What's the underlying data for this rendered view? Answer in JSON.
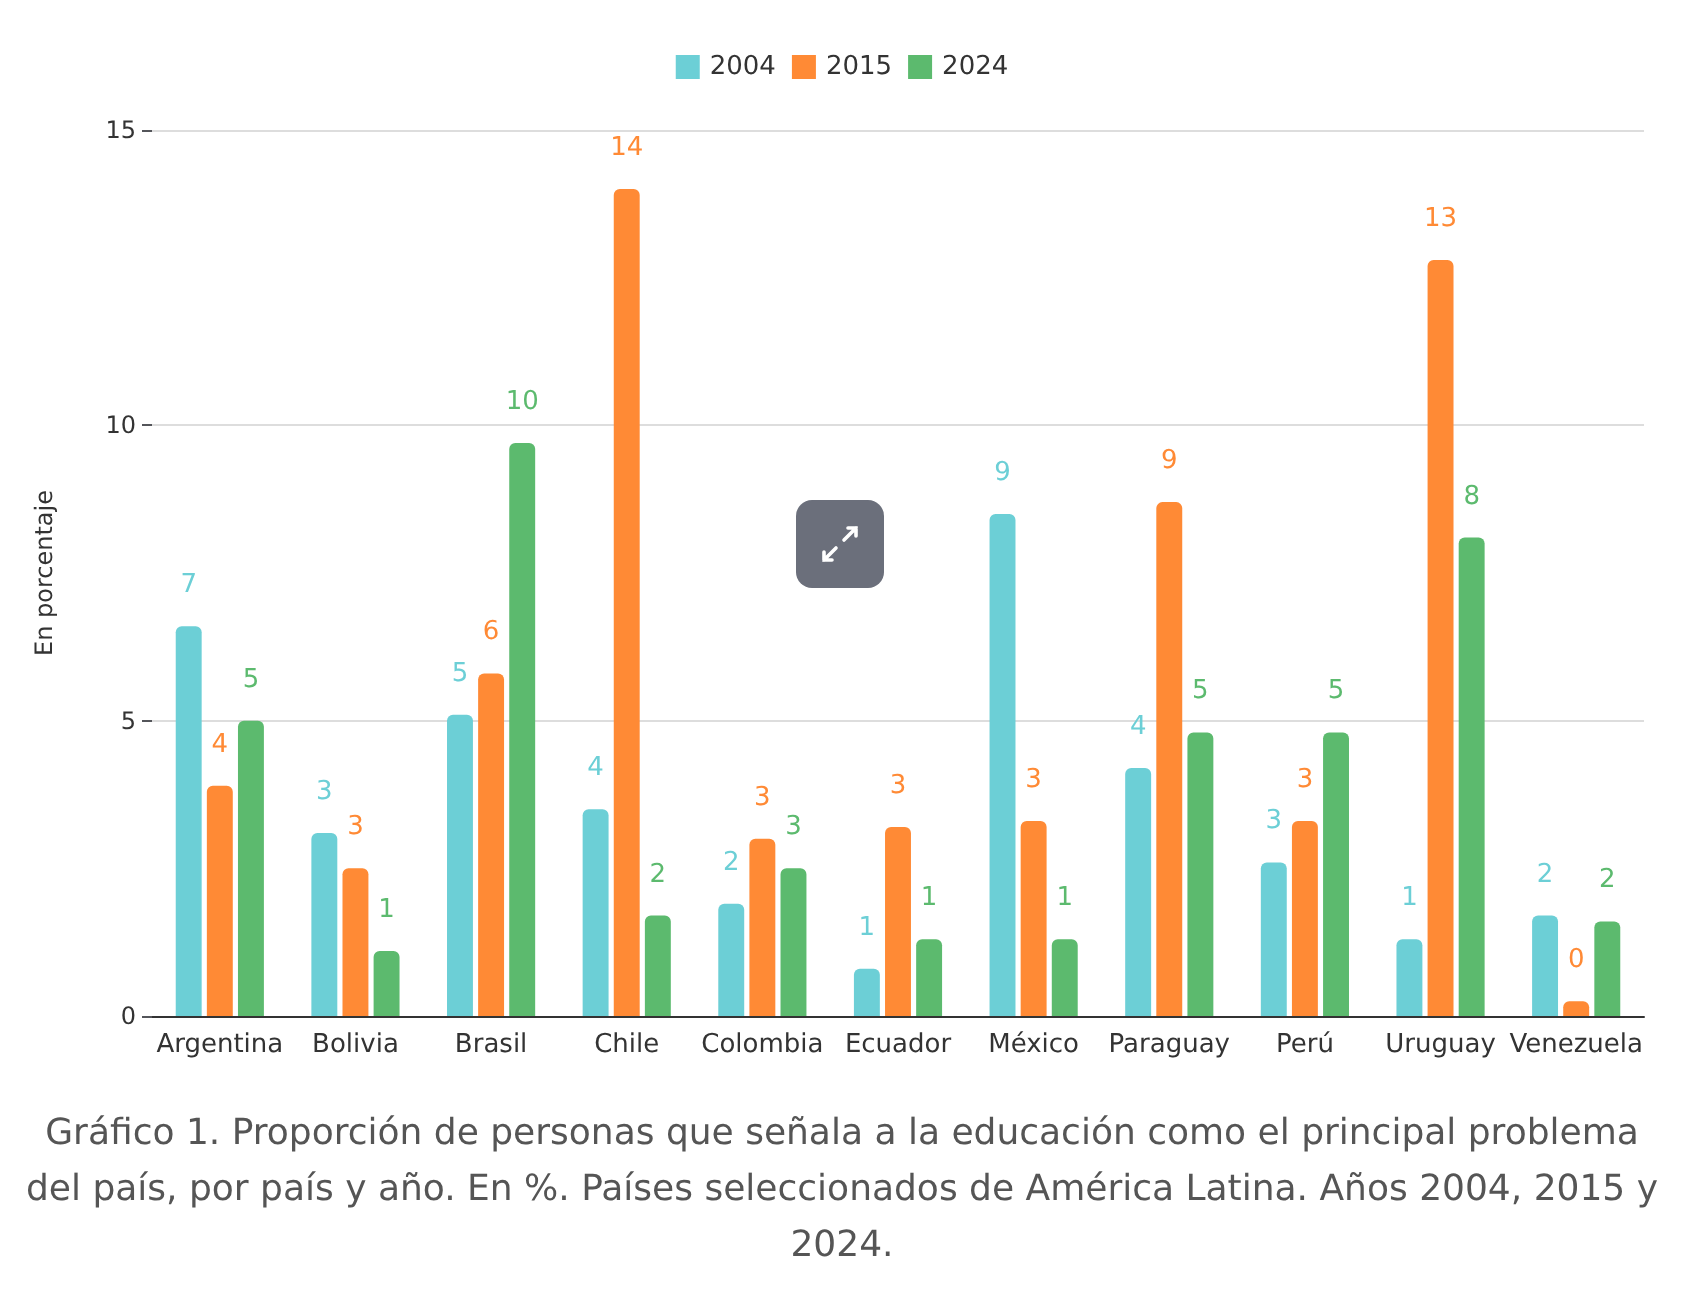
{
  "chart_data": {
    "type": "bar",
    "ylabel": "En porcentaje",
    "categories": [
      "Argentina",
      "Bolivia",
      "Brasil",
      "Chile",
      "Colombia",
      "Ecuador",
      "México",
      "Paraguay",
      "Perú",
      "Uruguay",
      "Venezuela"
    ],
    "series": [
      {
        "name": "2004",
        "color": "#6ccfd6",
        "values": [
          6.6,
          3.1,
          5.1,
          3.5,
          1.9,
          0.8,
          8.5,
          4.2,
          2.6,
          1.3,
          1.7
        ],
        "value_labels": [
          "7",
          "3",
          "5",
          "4",
          "2",
          "1",
          "9",
          "4",
          "3",
          "1",
          "2"
        ]
      },
      {
        "name": "2015",
        "color": "#ff8a35",
        "values": [
          3.9,
          2.5,
          5.8,
          14.0,
          3.0,
          3.2,
          3.3,
          8.7,
          3.3,
          12.8,
          0.25
        ],
        "value_labels": [
          "4",
          "3",
          "6",
          "14",
          "3",
          "3",
          "3",
          "9",
          "3",
          "13",
          "0"
        ]
      },
      {
        "name": "2024",
        "color": "#5cba6e",
        "values": [
          5.0,
          1.1,
          9.7,
          1.7,
          2.5,
          1.3,
          1.3,
          4.8,
          4.8,
          8.1,
          1.6
        ],
        "value_labels": [
          "5",
          "1",
          "10",
          "2",
          "3",
          "1",
          "1",
          "5",
          "5",
          "8",
          "2"
        ]
      }
    ],
    "ylim": [
      0,
      15
    ],
    "yticks": [
      0,
      5,
      10,
      15
    ],
    "grid": "y",
    "legend": "top",
    "annotations": [
      "Gráfico 1. Proporción de personas que señala a la educación como el principal problema del país, por país y año. En %. Países seleccionados de América Latina. Años 2004, 2015 y 2024."
    ]
  }
}
